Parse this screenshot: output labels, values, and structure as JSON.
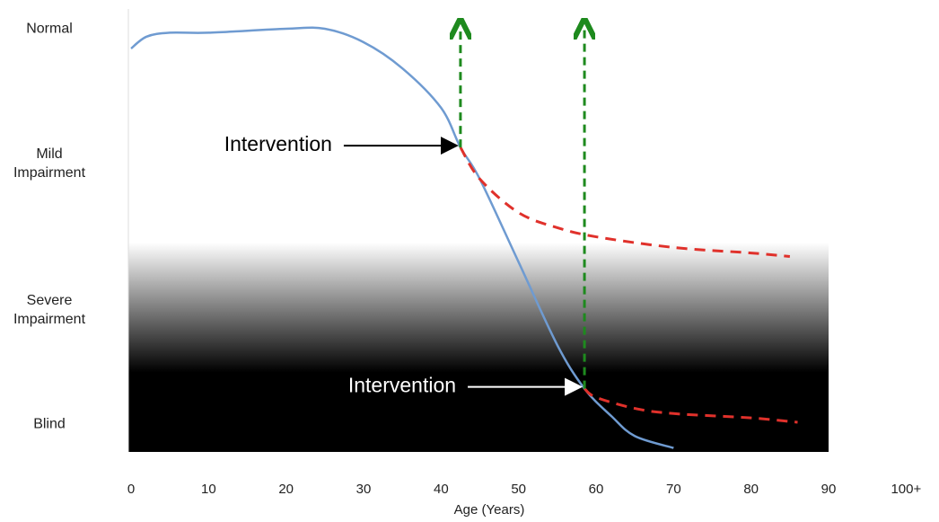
{
  "chart_data": {
    "type": "line",
    "x_label": "Age (Years)",
    "xlim": [
      0,
      101
    ],
    "xticks": [
      0,
      10,
      20,
      30,
      40,
      50,
      60,
      70,
      80,
      90,
      {
        "value": 100,
        "label": "100+"
      }
    ],
    "ylim": [
      -7,
      105
    ],
    "yticks": [
      {
        "value": 100,
        "label": "Normal"
      },
      {
        "value": 66,
        "label": "Mild Impairment"
      },
      {
        "value": 29,
        "label": "Severe Impairment"
      },
      {
        "value": 0,
        "label": "Blind"
      }
    ],
    "series": [
      {
        "color": "#6f9bd1",
        "dashed": false,
        "x": [
          0,
          2,
          5,
          10,
          20,
          25,
          30,
          35,
          40,
          42.5,
          45,
          50,
          55,
          58.5,
          62,
          65,
          70
        ],
        "values": [
          95,
          98,
          99,
          99,
          100,
          100,
          96.6,
          90,
          80,
          70,
          62,
          41,
          20,
          9,
          2,
          -3,
          -6
        ]
      },
      {
        "color": "#e0312b",
        "dashed": true,
        "x": [
          42.5,
          45,
          50,
          55,
          60,
          70,
          80,
          85
        ],
        "values": [
          70,
          62,
          53.5,
          49.7,
          47.4,
          44.7,
          43.3,
          42.4
        ]
      },
      {
        "color": "#e0312b",
        "dashed": true,
        "x": [
          58.5,
          60,
          65,
          70,
          80,
          86
        ],
        "values": [
          9,
          6.8,
          4,
          2.7,
          1.6,
          0.5
        ]
      }
    ],
    "interventions": [
      {
        "label": "Intervention",
        "x": 42.5,
        "y": 70,
        "arrow_top": 100,
        "color": "#000000"
      },
      {
        "label": "Intervention",
        "x": 58.5,
        "y": 9,
        "arrow_top": 100,
        "color": "#ffffff"
      }
    ],
    "marker_color": "#1e8a1e"
  }
}
